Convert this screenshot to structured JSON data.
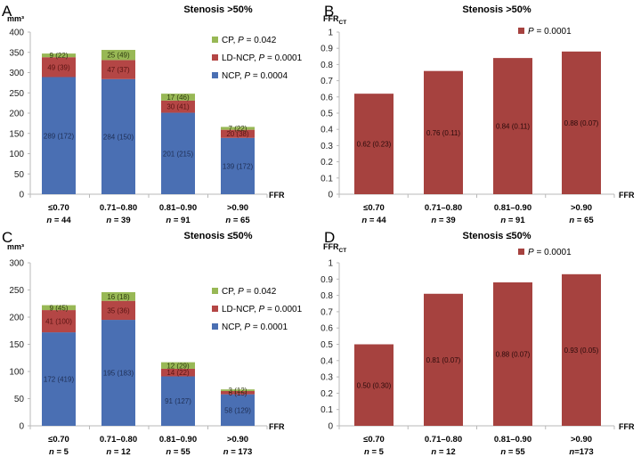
{
  "colors": {
    "NCP": "#4a6fb3",
    "LD-NCP": "#b44645",
    "CP": "#98b855",
    "ffrct_bar": "#a6423f",
    "axis": "#b8b8b8",
    "seg_text_ncp": "#1f2f55",
    "seg_text_ldncp": "#5a1413",
    "seg_text_cp": "#2f3a10"
  },
  "chart_data": [
    {
      "panel": "A",
      "type": "bar",
      "stacked": true,
      "title": "Stenosis >50%",
      "ylabel": "mm³",
      "xlabel": "FFR",
      "ylim": [
        0,
        400
      ],
      "yticks": [
        "0",
        "50",
        "100",
        "150",
        "200",
        "250",
        "300",
        "350",
        "400"
      ],
      "yticks_values": [
        0,
        50,
        100,
        150,
        200,
        250,
        300,
        350,
        400
      ],
      "categories": [
        "≤0.70",
        "0.71–0.80",
        "0.81–0.90",
        ">0.90"
      ],
      "n_labels": [
        "n = 44",
        "n = 39",
        "n = 91",
        "n = 65"
      ],
      "legend_position": "top-right",
      "series": [
        {
          "name": "NCP",
          "legend": "NCP, P = 0.0004",
          "legend_prefix": "NCP, ",
          "p_value": "= 0.0004",
          "values": [
            289,
            284,
            201,
            139
          ],
          "labels": [
            "289 (172)",
            "284 (150)",
            "201 (215)",
            "139 (172)"
          ]
        },
        {
          "name": "LD-NCP",
          "legend": "LD-NCP, P = 0.0001",
          "legend_prefix": "LD-NCP, ",
          "p_value": "= 0.0001",
          "values": [
            49,
            47,
            30,
            20
          ],
          "labels": [
            "49 (39)",
            "47 (37)",
            "30 (41)",
            "20 (38)"
          ]
        },
        {
          "name": "CP",
          "legend": "CP, P = 0.042",
          "legend_prefix": "CP, ",
          "p_value": "= 0.042",
          "values": [
            9,
            25,
            17,
            7
          ],
          "labels": [
            "9 (22)",
            "25 (49)",
            "17 (46)",
            "7 (22)"
          ]
        }
      ]
    },
    {
      "panel": "B",
      "type": "bar",
      "stacked": false,
      "title": "Stenosis >50%",
      "ylabel": "FFR",
      "ylabel_sub": "CT",
      "xlabel": "FFR",
      "ylim": [
        0,
        1
      ],
      "yticks": [
        "0",
        "0.1",
        "0.2",
        "0.3",
        "0.4",
        "0.5",
        "0.6",
        "0.7",
        "0.8",
        "0.9",
        "1"
      ],
      "yticks_values": [
        0,
        0.1,
        0.2,
        0.3,
        0.4,
        0.5,
        0.6,
        0.7,
        0.8,
        0.9,
        1
      ],
      "categories": [
        "≤0.70",
        "0.71–0.80",
        "0.81–0.90",
        ">0.90"
      ],
      "n_labels": [
        "n = 44",
        "n = 39",
        "n = 91",
        "n = 65"
      ],
      "legend_position": "top-right",
      "series": [
        {
          "name": "FFRCT",
          "legend": "P = 0.0001",
          "legend_prefix": "",
          "p_value": "= 0.0001",
          "values": [
            0.62,
            0.76,
            0.84,
            0.88
          ],
          "labels": [
            "0.62 (0.23)",
            "0.76 (0.11)",
            "0.84 (0.11)",
            "0.88 (0.07)"
          ]
        }
      ]
    },
    {
      "panel": "C",
      "type": "bar",
      "stacked": true,
      "title": "Stenosis ≤50%",
      "ylabel": "mm³",
      "xlabel": "FFR",
      "ylim": [
        0,
        300
      ],
      "yticks": [
        "0",
        "50",
        "100",
        "150",
        "200",
        "250",
        "300"
      ],
      "yticks_values": [
        0,
        50,
        100,
        150,
        200,
        250,
        300
      ],
      "categories": [
        "≤0.70",
        "0.71–0.80",
        "0.81–0.90",
        ">0.90"
      ],
      "n_labels": [
        "n = 5",
        "n = 12",
        "n = 55",
        "n = 173"
      ],
      "legend_position": "top-right",
      "series": [
        {
          "name": "NCP",
          "legend": "NCP, P = 0.0001",
          "legend_prefix": "NCP, ",
          "p_value": "= 0.0001",
          "values": [
            172,
            195,
            91,
            58
          ],
          "labels": [
            "172 (419)",
            "195 (183)",
            "91 (127)",
            "58 (129)"
          ]
        },
        {
          "name": "LD-NCP",
          "legend": "LD-NCP, P = 0.0001",
          "legend_prefix": "LD-NCP, ",
          "p_value": "= 0.0001",
          "values": [
            41,
            35,
            14,
            6
          ],
          "labels": [
            "41 (100)",
            "35 (36)",
            "14 (22)",
            "6 (15)"
          ]
        },
        {
          "name": "CP",
          "legend": "CP, P = 0.042",
          "legend_prefix": "CP, ",
          "p_value": "= 0.042",
          "values": [
            9,
            16,
            12,
            3
          ],
          "labels": [
            "9 (45)",
            "16 (18)",
            "12 (29)",
            "3 (12)"
          ]
        }
      ]
    },
    {
      "panel": "D",
      "type": "bar",
      "stacked": false,
      "title": "Stenosis ≤50%",
      "ylabel": "FFR",
      "ylabel_sub": "CT",
      "xlabel": "FFR",
      "ylim": [
        0,
        1
      ],
      "yticks": [
        "0",
        "0.1",
        "0.2",
        "0.3",
        "0.4",
        "0.5",
        "0.6",
        "0.7",
        "0.8",
        "0.9",
        "1"
      ],
      "yticks_values": [
        0,
        0.1,
        0.2,
        0.3,
        0.4,
        0.5,
        0.6,
        0.7,
        0.8,
        0.9,
        1
      ],
      "categories": [
        "≤0.70",
        "0.71–0.80",
        "0.81–0.90",
        ">0.90"
      ],
      "n_labels": [
        "n = 5",
        "n = 12",
        "n = 55",
        "n=173"
      ],
      "legend_position": "top-right",
      "series": [
        {
          "name": "FFRCT",
          "legend": "P = 0.0001",
          "legend_prefix": "",
          "p_value": "= 0.0001",
          "values": [
            0.5,
            0.81,
            0.88,
            0.93
          ],
          "labels": [
            "0.50 (0.30)",
            "0.81 (0.07)",
            "0.88 (0.07)",
            "0.93 (0.05)"
          ]
        }
      ]
    }
  ]
}
